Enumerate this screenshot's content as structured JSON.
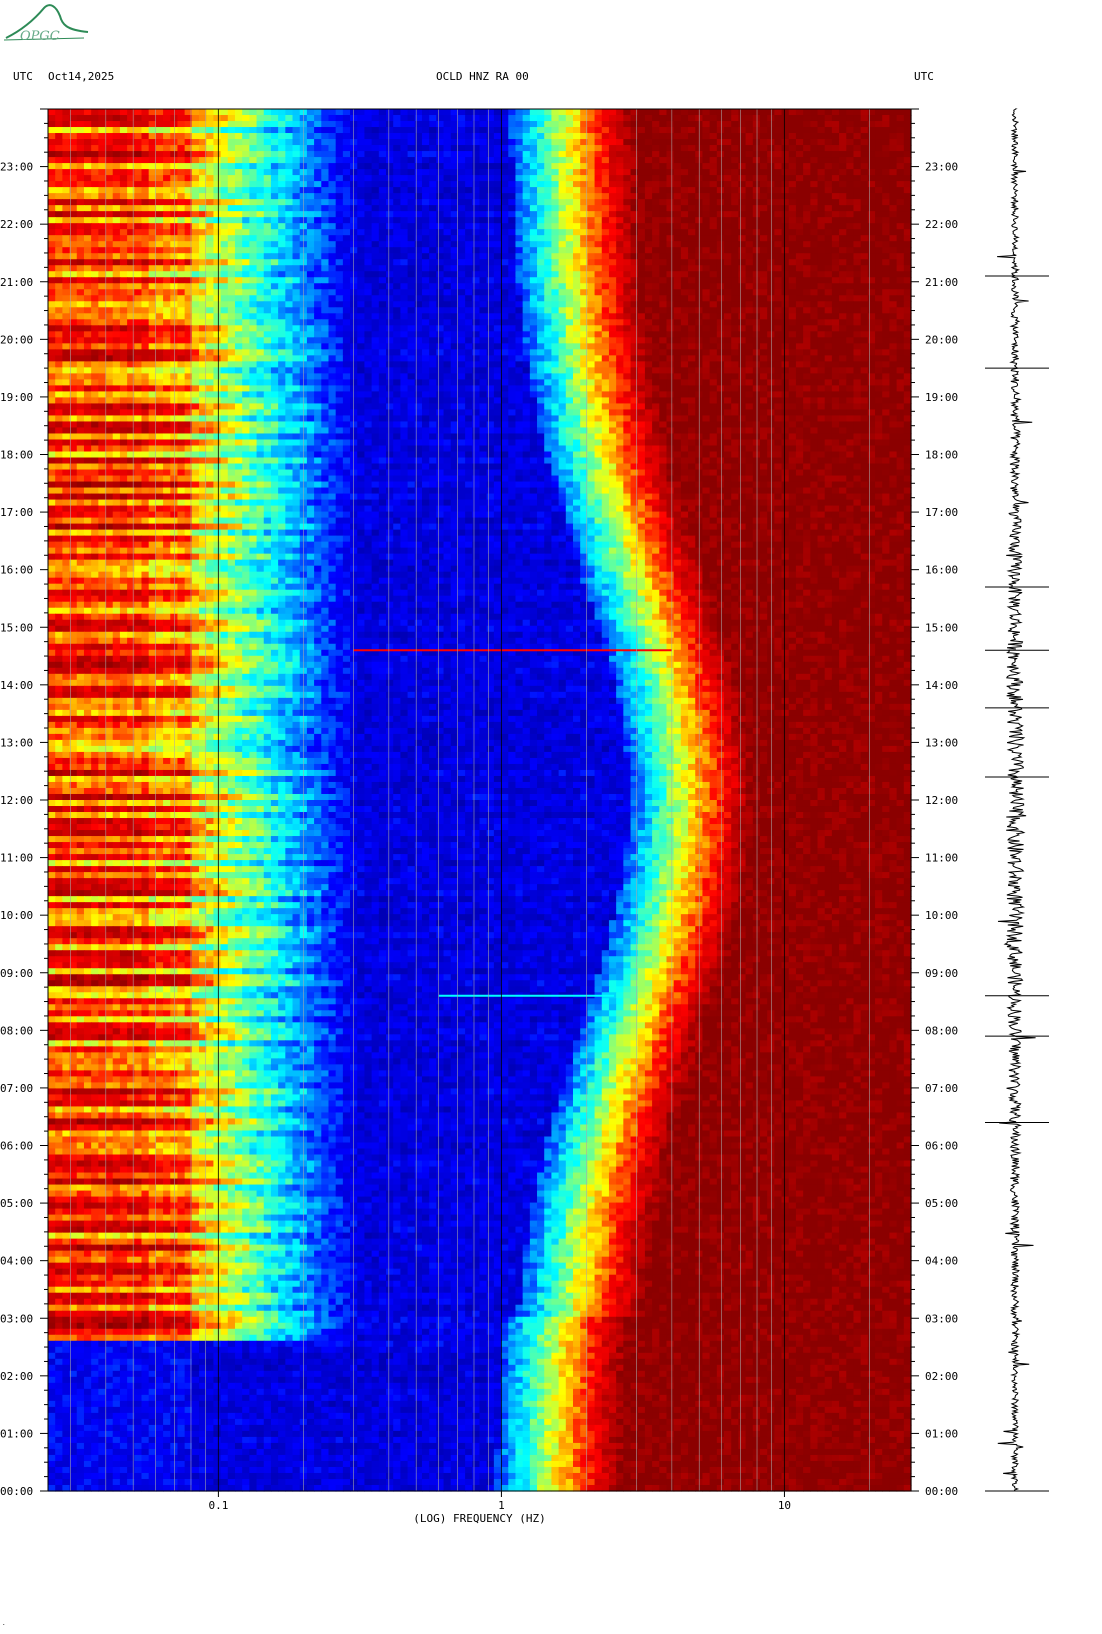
{
  "header": {
    "left_tz": "UTC",
    "date": "Oct14,2025",
    "station": "OCLD HNZ RA 00",
    "right_tz": "UTC"
  },
  "logo": {
    "text": "OPGC"
  },
  "chart_data": {
    "type": "heatmap",
    "xlabel": "(LOG) FREQUENCY (HZ)",
    "x_scale": "log",
    "xlim": [
      0.025,
      28
    ],
    "x_ticks": [
      {
        "value": 0.1,
        "label": "0.1"
      },
      {
        "value": 1,
        "label": "1"
      },
      {
        "value": 10,
        "label": "10"
      }
    ],
    "ylim_hours": [
      0,
      24
    ],
    "y_ticks": [
      {
        "hour": 0,
        "label": "00:00"
      },
      {
        "hour": 1,
        "label": "01:00"
      },
      {
        "hour": 2,
        "label": "02:00"
      },
      {
        "hour": 3,
        "label": "03:00"
      },
      {
        "hour": 4,
        "label": "04:00"
      },
      {
        "hour": 5,
        "label": "05:00"
      },
      {
        "hour": 6,
        "label": "06:00"
      },
      {
        "hour": 7,
        "label": "07:00"
      },
      {
        "hour": 8,
        "label": "08:00"
      },
      {
        "hour": 9,
        "label": "09:00"
      },
      {
        "hour": 10,
        "label": "10:00"
      },
      {
        "hour": 11,
        "label": "11:00"
      },
      {
        "hour": 12,
        "label": "12:00"
      },
      {
        "hour": 13,
        "label": "13:00"
      },
      {
        "hour": 14,
        "label": "14:00"
      },
      {
        "hour": 15,
        "label": "15:00"
      },
      {
        "hour": 16,
        "label": "16:00"
      },
      {
        "hour": 17,
        "label": "17:00"
      },
      {
        "hour": 18,
        "label": "18:00"
      },
      {
        "hour": 19,
        "label": "19:00"
      },
      {
        "hour": 20,
        "label": "20:00"
      },
      {
        "hour": 21,
        "label": "21:00"
      },
      {
        "hour": 22,
        "label": "22:00"
      },
      {
        "hour": 23,
        "label": "23:00"
      }
    ],
    "colormap": [
      "#00008b",
      "#0000ff",
      "#00ffff",
      "#ffff00",
      "#ff0000",
      "#8b0000"
    ],
    "grid": true,
    "events": [
      {
        "hour": 14.6,
        "freq_from": 0.3,
        "freq_to": 4.0,
        "color": "#ff0000"
      },
      {
        "hour": 8.6,
        "freq_from": 0.6,
        "freq_to": 2.5,
        "color": "#00ffff"
      }
    ],
    "low_freq_quiet_until_hour": 2.6
  }
}
